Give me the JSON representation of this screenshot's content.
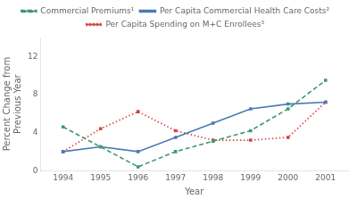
{
  "chart_data": {
    "type": "line",
    "x": [
      1994,
      1995,
      1996,
      1997,
      1998,
      1999,
      2000,
      2001
    ],
    "xlabel": "Year",
    "ylabel": "Percent Change from\nPrevious Year",
    "xlim": [
      1993.4,
      2001.6
    ],
    "xticks": [
      1994,
      1995,
      1996,
      1997,
      1998,
      1999,
      2000,
      2001
    ],
    "ylim": [
      0,
      14
    ],
    "yticks": [
      0,
      4,
      8,
      12
    ],
    "grid": false,
    "legend": "top",
    "series": [
      {
        "name": "Commercial Premiums¹",
        "color": "#3a9a6e",
        "line_style": "dashed",
        "marker": "square",
        "values": [
          4.6,
          2.5,
          0.4,
          2.0,
          3.1,
          4.2,
          6.5,
          9.5
        ]
      },
      {
        "name": "Per Capita Commercial Health Care Costs²",
        "color": "#4a7ab5",
        "line_style": "solid",
        "marker": "square",
        "values": [
          2.0,
          2.5,
          2.0,
          3.5,
          5.0,
          6.5,
          7.0,
          7.2
        ]
      },
      {
        "name": "Per Capita Spending on M+C Enrollees³",
        "color": "#d94040",
        "line_style": "dotted",
        "marker": "square",
        "values": [
          2.0,
          4.4,
          6.2,
          4.2,
          3.2,
          3.2,
          3.5,
          7.2
        ]
      }
    ]
  }
}
